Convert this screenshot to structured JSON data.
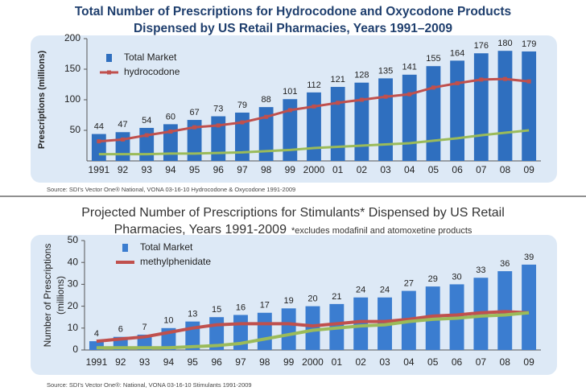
{
  "chart_data": [
    {
      "type": "bar",
      "title": [
        "Total Number of Prescriptions for Hydrocodone and Oxycodone Products",
        "Dispensed by US Retail Pharmacies, Years 1991–2009"
      ],
      "ylabel": [
        "Prescriptions (millions)"
      ],
      "source": "Source: SDI's Vector One® National,  VONA 03-16-10 Hydrocodone & Oxycodone 1991-2009",
      "categories": [
        "1991",
        "92",
        "93",
        "94",
        "95",
        "96",
        "97",
        "98",
        "99",
        "2000",
        "01",
        "02",
        "03",
        "04",
        "05",
        "06",
        "07",
        "08",
        "09"
      ],
      "series": [
        {
          "name": "Total Market",
          "color": "#2f6fbf",
          "kind": "bar",
          "values": [
            44,
            47,
            54,
            60,
            67,
            73,
            79,
            88,
            101,
            112,
            121,
            128,
            135,
            141,
            155,
            164,
            176,
            180,
            179
          ]
        },
        {
          "name": "hydrocodone",
          "color": "#c0504d",
          "kind": "line",
          "values": [
            32,
            35,
            42,
            48,
            55,
            58,
            63,
            72,
            83,
            89,
            95,
            100,
            105,
            109,
            120,
            127,
            133,
            134,
            130
          ]
        },
        {
          "color": "#9bbb59",
          "kind": "line",
          "values": [
            11,
            11,
            11,
            12,
            12,
            13,
            14,
            16,
            18,
            21,
            23,
            25,
            27,
            29,
            33,
            37,
            42,
            46,
            50
          ]
        }
      ],
      "ylim": [
        0,
        200
      ],
      "yticks": [
        50,
        100,
        150,
        200
      ],
      "legend": "upper left"
    },
    {
      "type": "bar",
      "title": [
        "Projected Number of Prescriptions for Stimulants*  Dispensed by US Retail",
        "Pharmacies, Years 1991-2009"
      ],
      "note": "*excludes modafinil and atomoxetine products",
      "ylabel": [
        "Number of Prescriptions",
        "(millions)"
      ],
      "source": "Source: SDI's Vector One®: National, VONA 03-16-10 Stimulants  1991-2009",
      "categories": [
        "1991",
        "92",
        "93",
        "94",
        "95",
        "96",
        "97",
        "98",
        "99",
        "2000",
        "01",
        "02",
        "03",
        "04",
        "05",
        "06",
        "07",
        "08",
        "09"
      ],
      "series": [
        {
          "name": "Total Market",
          "color": "#3b7dd0",
          "kind": "bar",
          "values": [
            4,
            6,
            7,
            10,
            13,
            15,
            16,
            17,
            19,
            20,
            21,
            24,
            24,
            27,
            29,
            30,
            33,
            36,
            39
          ]
        },
        {
          "name": "methylphenidate",
          "color": "#c0504d",
          "kind": "line",
          "values": [
            4,
            5,
            6,
            8,
            10,
            11.5,
            12,
            12,
            12,
            11,
            12,
            13,
            13,
            14,
            15.5,
            16,
            17,
            17.5,
            17
          ]
        },
        {
          "color": "#9bbb59",
          "kind": "line",
          "values": [
            1,
            1,
            1,
            1,
            1.5,
            2,
            3,
            5,
            7,
            9,
            10,
            11,
            11.5,
            13,
            14,
            14.5,
            15.5,
            16,
            17
          ]
        }
      ],
      "ylim": [
        0,
        50
      ],
      "yticks": [
        0,
        10,
        20,
        30,
        40,
        50
      ],
      "legend": "upper left"
    }
  ]
}
